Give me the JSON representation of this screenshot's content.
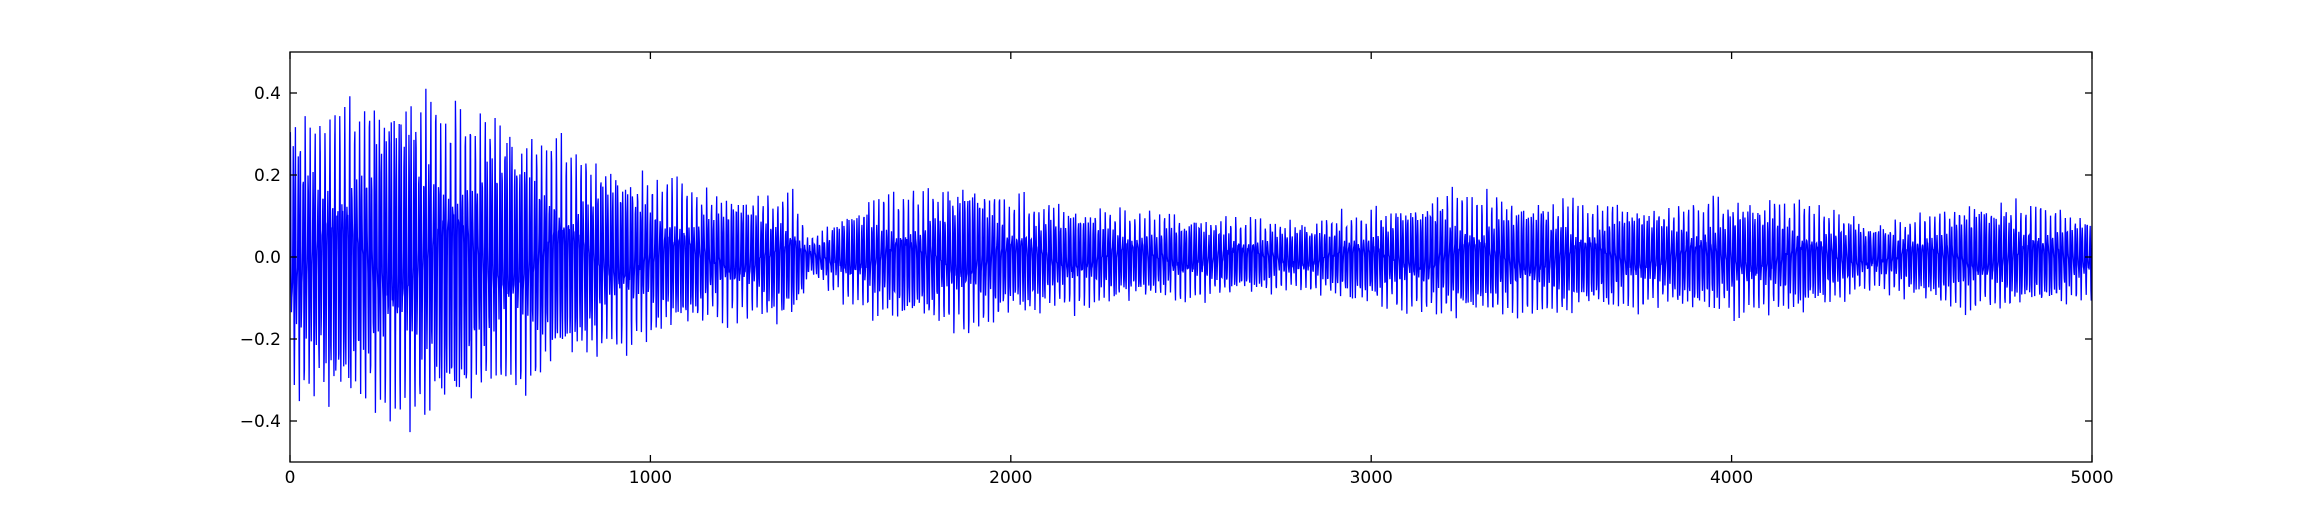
{
  "chart_data": {
    "type": "line",
    "title": "",
    "xlabel": "",
    "ylabel": "",
    "xlim": [
      0,
      5000
    ],
    "ylim": [
      -0.5,
      0.5
    ],
    "grid": false,
    "legend": "none",
    "x_ticks": [
      0,
      1000,
      2000,
      3000,
      4000,
      5000
    ],
    "x_tick_labels": [
      "0",
      "1000",
      "2000",
      "3000",
      "4000",
      "5000"
    ],
    "y_ticks": [
      0.4,
      0.2,
      0.0,
      -0.2,
      -0.4
    ],
    "y_tick_labels": [
      "0.4",
      "0.2",
      "0.0",
      "−0.2",
      "−0.4"
    ],
    "line_color": "#0000ff",
    "series": [
      {
        "x_start": 0,
        "x_end": 5000,
        "envelope_x": [
          0,
          200,
          400,
          600,
          800,
          1000,
          1200,
          1400,
          1440,
          1600,
          1800,
          1900,
          2000,
          2200,
          2400,
          2600,
          2800,
          3000,
          3200,
          3400,
          3600,
          3800,
          4000,
          4200,
          4400,
          4600,
          4800,
          5000
        ],
        "envelope_amp": [
          0.36,
          0.4,
          0.42,
          0.35,
          0.27,
          0.21,
          0.16,
          0.16,
          0.05,
          0.15,
          0.17,
          0.2,
          0.15,
          0.13,
          0.11,
          0.1,
          0.09,
          0.12,
          0.16,
          0.15,
          0.14,
          0.13,
          0.15,
          0.14,
          0.08,
          0.13,
          0.14,
          0.11
        ],
        "min_value": -0.44,
        "max_value": 0.43
      }
    ]
  }
}
